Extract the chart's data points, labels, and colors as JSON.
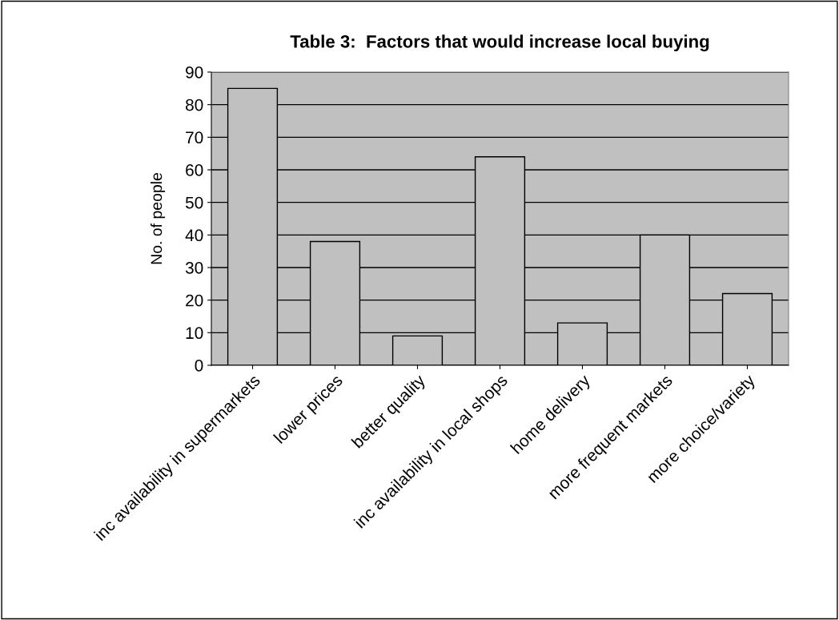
{
  "chart_data": {
    "type": "bar",
    "title": "Table 3:  Factors that would increase local buying",
    "ylabel": "No. of people",
    "categories": [
      "inc availability in supermarkets",
      "lower prices",
      "better quality",
      "inc availability in local shops",
      "home delivery",
      "more frequent markets",
      "more choice/variety"
    ],
    "values": [
      85,
      38,
      9,
      64,
      13,
      40,
      22
    ],
    "color": "#c0c0c0",
    "ylim": [
      0,
      90
    ],
    "yticks": [
      0,
      10,
      20,
      30,
      40,
      50,
      60,
      70,
      80,
      90
    ],
    "grid": "y",
    "legend": false
  }
}
